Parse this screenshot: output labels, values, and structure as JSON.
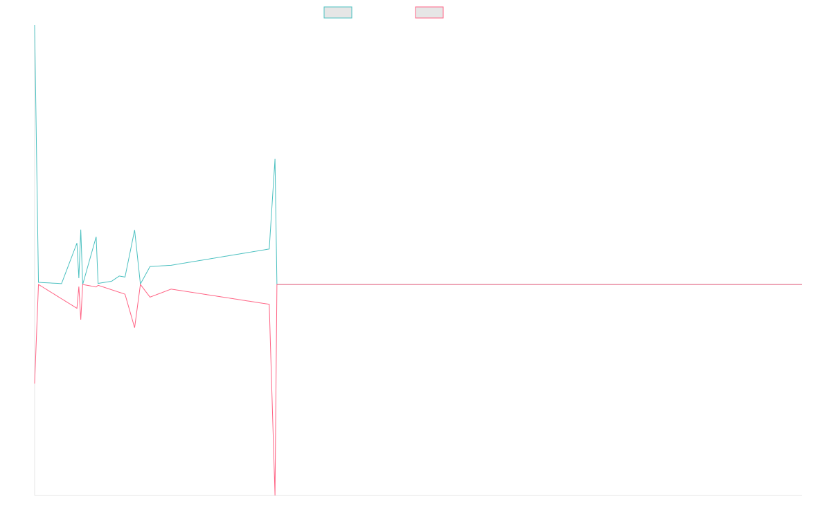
{
  "chart_data": {
    "type": "line",
    "title": "",
    "xlabel": "",
    "ylabel": "",
    "grid": false,
    "legend_position": "top-center",
    "x_count": 400,
    "ylim": [
      -1.0,
      1.23
    ],
    "series": [
      {
        "name": "",
        "color": "#4bc0c0",
        "points": [
          [
            0,
            1.23
          ],
          [
            2,
            0.01
          ],
          [
            14,
            0.004
          ],
          [
            22,
            0.196
          ],
          [
            23,
            0.03
          ],
          [
            24,
            0.26
          ],
          [
            25,
            0.0
          ],
          [
            32,
            0.226
          ],
          [
            33,
            0.005
          ],
          [
            40,
            0.015
          ],
          [
            44,
            0.04
          ],
          [
            47,
            0.035
          ],
          [
            52,
            0.258
          ],
          [
            55,
            0.002
          ],
          [
            60,
            0.085
          ],
          [
            71,
            0.091
          ],
          [
            122,
            0.168
          ],
          [
            125,
            0.595
          ],
          [
            126,
            0.0
          ],
          [
            399,
            0.0
          ]
        ]
      },
      {
        "name": "",
        "color": "#ff6384",
        "points": [
          [
            0,
            -0.47
          ],
          [
            2,
            0.0
          ],
          [
            22,
            -0.113
          ],
          [
            23,
            -0.01
          ],
          [
            24,
            -0.167
          ],
          [
            25,
            0.0
          ],
          [
            32,
            -0.012
          ],
          [
            33,
            -0.004
          ],
          [
            47,
            -0.046
          ],
          [
            52,
            -0.205
          ],
          [
            55,
            0.0
          ],
          [
            60,
            -0.06
          ],
          [
            71,
            -0.022
          ],
          [
            122,
            -0.094
          ],
          [
            125,
            -1.0
          ],
          [
            126,
            0.0
          ],
          [
            399,
            0.0
          ]
        ]
      }
    ]
  }
}
